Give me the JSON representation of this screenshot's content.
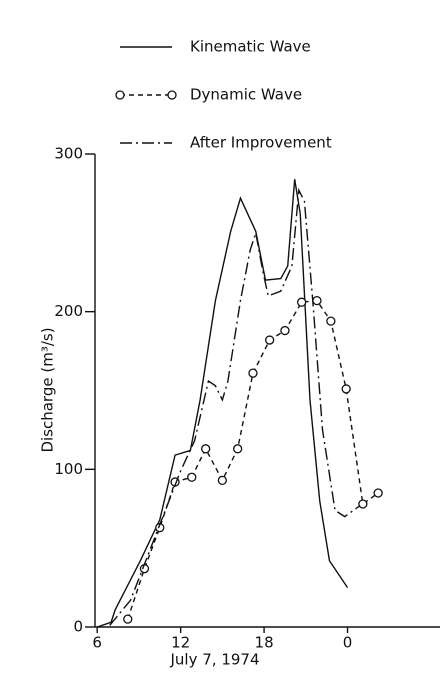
{
  "chart_data": {
    "type": "line",
    "xlabel": "July 7, 1974",
    "ylabel": "Discharge (m³/s)",
    "xlim": [
      5.7,
      30
    ],
    "xticks": [
      6,
      12,
      18,
      {
        "value": 24,
        "label": "0"
      }
    ],
    "ylim": [
      0,
      300
    ],
    "yticks": [
      0,
      100,
      200,
      300
    ],
    "series": [
      {
        "name": "Kinematic Wave",
        "color": "#111111",
        "style": "solid",
        "x": [
          6,
          7,
          7.3,
          9.1,
          10.5,
          11.6,
          12.7,
          13.4,
          14.5,
          15.6,
          16.3,
          17.4,
          18.1,
          19.2,
          19.7,
          20.2,
          20.6,
          21.3,
          22,
          22.7,
          24
        ],
        "values": [
          0,
          3,
          11,
          42,
          68,
          109,
          112,
          144,
          207,
          251,
          272,
          251,
          220,
          221,
          229,
          284,
          262,
          144,
          80,
          42,
          25
        ]
      },
      {
        "name": "Dynamic Wave",
        "color": "#111111",
        "style": "dashed",
        "marker": "circle",
        "x": [
          8.2,
          9.4,
          10.5,
          11.6,
          12.8,
          13.8,
          15,
          16.1,
          17.2,
          18.4,
          19.5,
          20.7,
          21.8,
          22.8,
          23.9,
          25.1,
          26.2
        ],
        "values": [
          5,
          37,
          63,
          92,
          95,
          113,
          93,
          113,
          161,
          182,
          188,
          206,
          207,
          194,
          151,
          78,
          85
        ]
      },
      {
        "name": "After Improvement",
        "color": "#111111",
        "style": "dashdot",
        "x": [
          6.9,
          8.4,
          9.8,
          10.9,
          12,
          13,
          14,
          14.5,
          15,
          15.4,
          16.3,
          17,
          17.4,
          17.9,
          18.3,
          19.2,
          20,
          20.5,
          20.9,
          21.5,
          22.2,
          23.1,
          23.8,
          24.9
        ],
        "values": [
          1,
          17,
          49,
          74,
          99,
          118,
          156,
          153,
          144,
          156,
          207,
          239,
          250,
          226,
          210,
          213,
          229,
          277,
          270,
          207,
          125,
          74,
          70,
          77
        ]
      }
    ]
  }
}
